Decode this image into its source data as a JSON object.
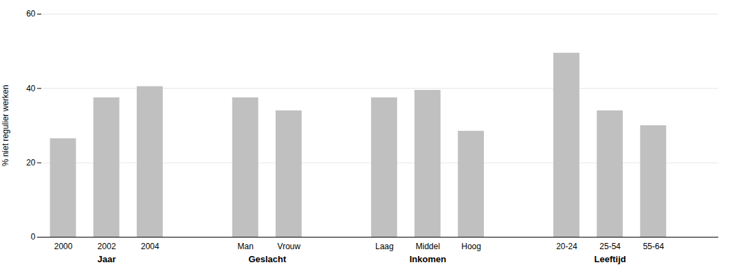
{
  "chart_data": {
    "type": "bar",
    "categories": [
      "2000",
      "2002",
      "2004",
      "Man",
      "Vrouw",
      "Laag",
      "Middel",
      "Hoog",
      "20-24",
      "25-54",
      "55-64"
    ],
    "values": [
      26.5,
      37.5,
      40.5,
      37.5,
      34.0,
      37.5,
      39.5,
      28.5,
      49.5,
      34.0,
      30.0
    ],
    "groups": [
      {
        "label": "Jaar",
        "categories": [
          "2000",
          "2002",
          "2004"
        ]
      },
      {
        "label": "Geslacht",
        "categories": [
          "Man",
          "Vrouw"
        ]
      },
      {
        "label": "Inkomen",
        "categories": [
          "Laag",
          "Middel",
          "Hoog"
        ]
      },
      {
        "label": "Leeftijd",
        "categories": [
          "20-24",
          "25-54",
          "55-64"
        ]
      }
    ],
    "ylabel": "% niet regulier werken",
    "ylim": [
      0,
      60
    ],
    "yticks": [
      0,
      20,
      40,
      60
    ],
    "color": "#c0c0c0",
    "grid": true
  }
}
